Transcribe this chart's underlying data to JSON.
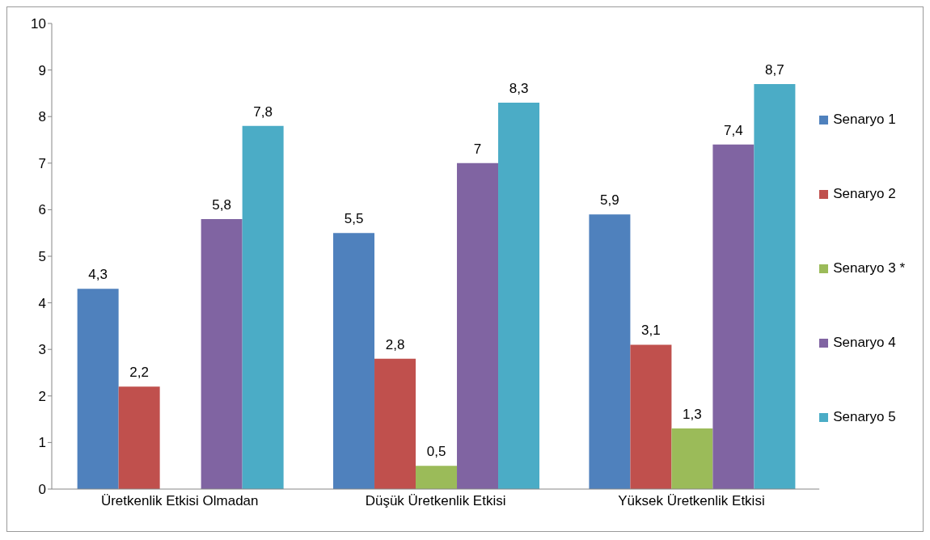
{
  "chart_data": {
    "type": "bar",
    "categories": [
      "Üretkenlik Etkisi Olmadan",
      "Düşük Üretkenlik Etkisi",
      "Yüksek Üretkenlik Etkisi"
    ],
    "series": [
      {
        "name": "Senaryo 1",
        "color": "#4f81bd",
        "values": [
          4.3,
          5.5,
          5.9
        ],
        "value_labels": [
          "4,3",
          "5,5",
          "5,9"
        ]
      },
      {
        "name": "Senaryo 2",
        "color": "#c0504d",
        "values": [
          2.2,
          2.8,
          3.1
        ],
        "value_labels": [
          "2,2",
          "2,8",
          "3,1"
        ]
      },
      {
        "name": "Senaryo 3 *",
        "color": "#9bbb59",
        "values": [
          null,
          0.5,
          1.3
        ],
        "value_labels": [
          null,
          "0,5",
          "1,3"
        ]
      },
      {
        "name": "Senaryo 4",
        "color": "#8064a2",
        "values": [
          5.8,
          7,
          7.4
        ],
        "value_labels": [
          "5,8",
          "7",
          "7,4"
        ]
      },
      {
        "name": "Senaryo 5",
        "color": "#4bacc6",
        "values": [
          7.8,
          8.3,
          8.7
        ],
        "value_labels": [
          "7,8",
          "8,3",
          "8,7"
        ]
      }
    ],
    "ylim": [
      0,
      10
    ],
    "yticks": [
      0,
      1,
      2,
      3,
      4,
      5,
      6,
      7,
      8,
      9,
      10
    ],
    "grid": false,
    "legend": "right"
  }
}
